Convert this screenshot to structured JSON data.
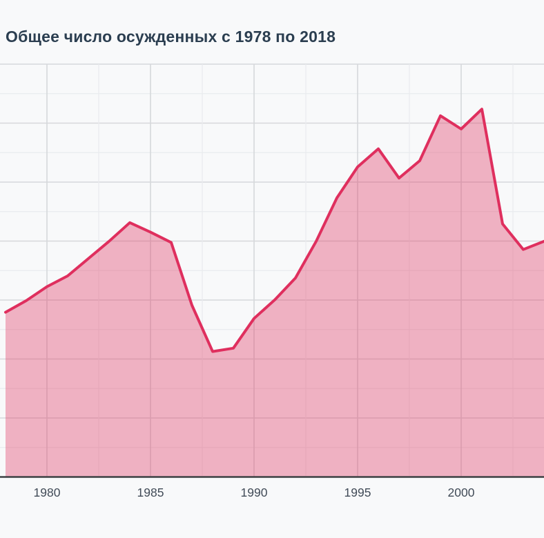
{
  "page": {
    "background": "#f8f9fa"
  },
  "header": {
    "title": "Общее число осужденных с 1978 по 2018",
    "title_color": "#2b3e50"
  },
  "chart_data": {
    "type": "area",
    "title": "Общее число осужденных с 1978 по 2018",
    "x": [
      1978,
      1979,
      1980,
      1981,
      1982,
      1983,
      1984,
      1985,
      1986,
      1987,
      1988,
      1989,
      1990,
      1991,
      1992,
      1993,
      1994,
      1995,
      1996,
      1997,
      1998,
      1999,
      2000,
      2001,
      2002,
      2003,
      2004
    ],
    "values_norm": [
      0.399,
      0.427,
      0.461,
      0.487,
      0.529,
      0.571,
      0.616,
      0.593,
      0.568,
      0.416,
      0.304,
      0.312,
      0.384,
      0.429,
      0.482,
      0.571,
      0.676,
      0.751,
      0.795,
      0.724,
      0.766,
      0.875,
      0.843,
      0.891,
      0.613,
      0.551,
      0.571
    ],
    "value_scale": "fraction of visible plot height above x-axis; no y-axis tick labels are visible in the screenshot",
    "x_tick_labels": [
      "1980",
      "1985",
      "1990",
      "1995",
      "2000"
    ],
    "y_tick_labels": [],
    "xlabel": "",
    "ylabel": "",
    "x_visible_range": [
      1978,
      2004
    ],
    "legend": "none",
    "grid": {
      "major_color": "#d6d8db",
      "minor_color": "#e9ebee",
      "vertical_minor_interval_years": 2.5,
      "horizontal_rows": 14
    },
    "axis_color": "#3c4043",
    "line_color": "#df2f5e",
    "fill_color": "rgba(224,49,94,0.36)",
    "background": "#f8f9fa",
    "tick_label_color": "#414b57"
  }
}
